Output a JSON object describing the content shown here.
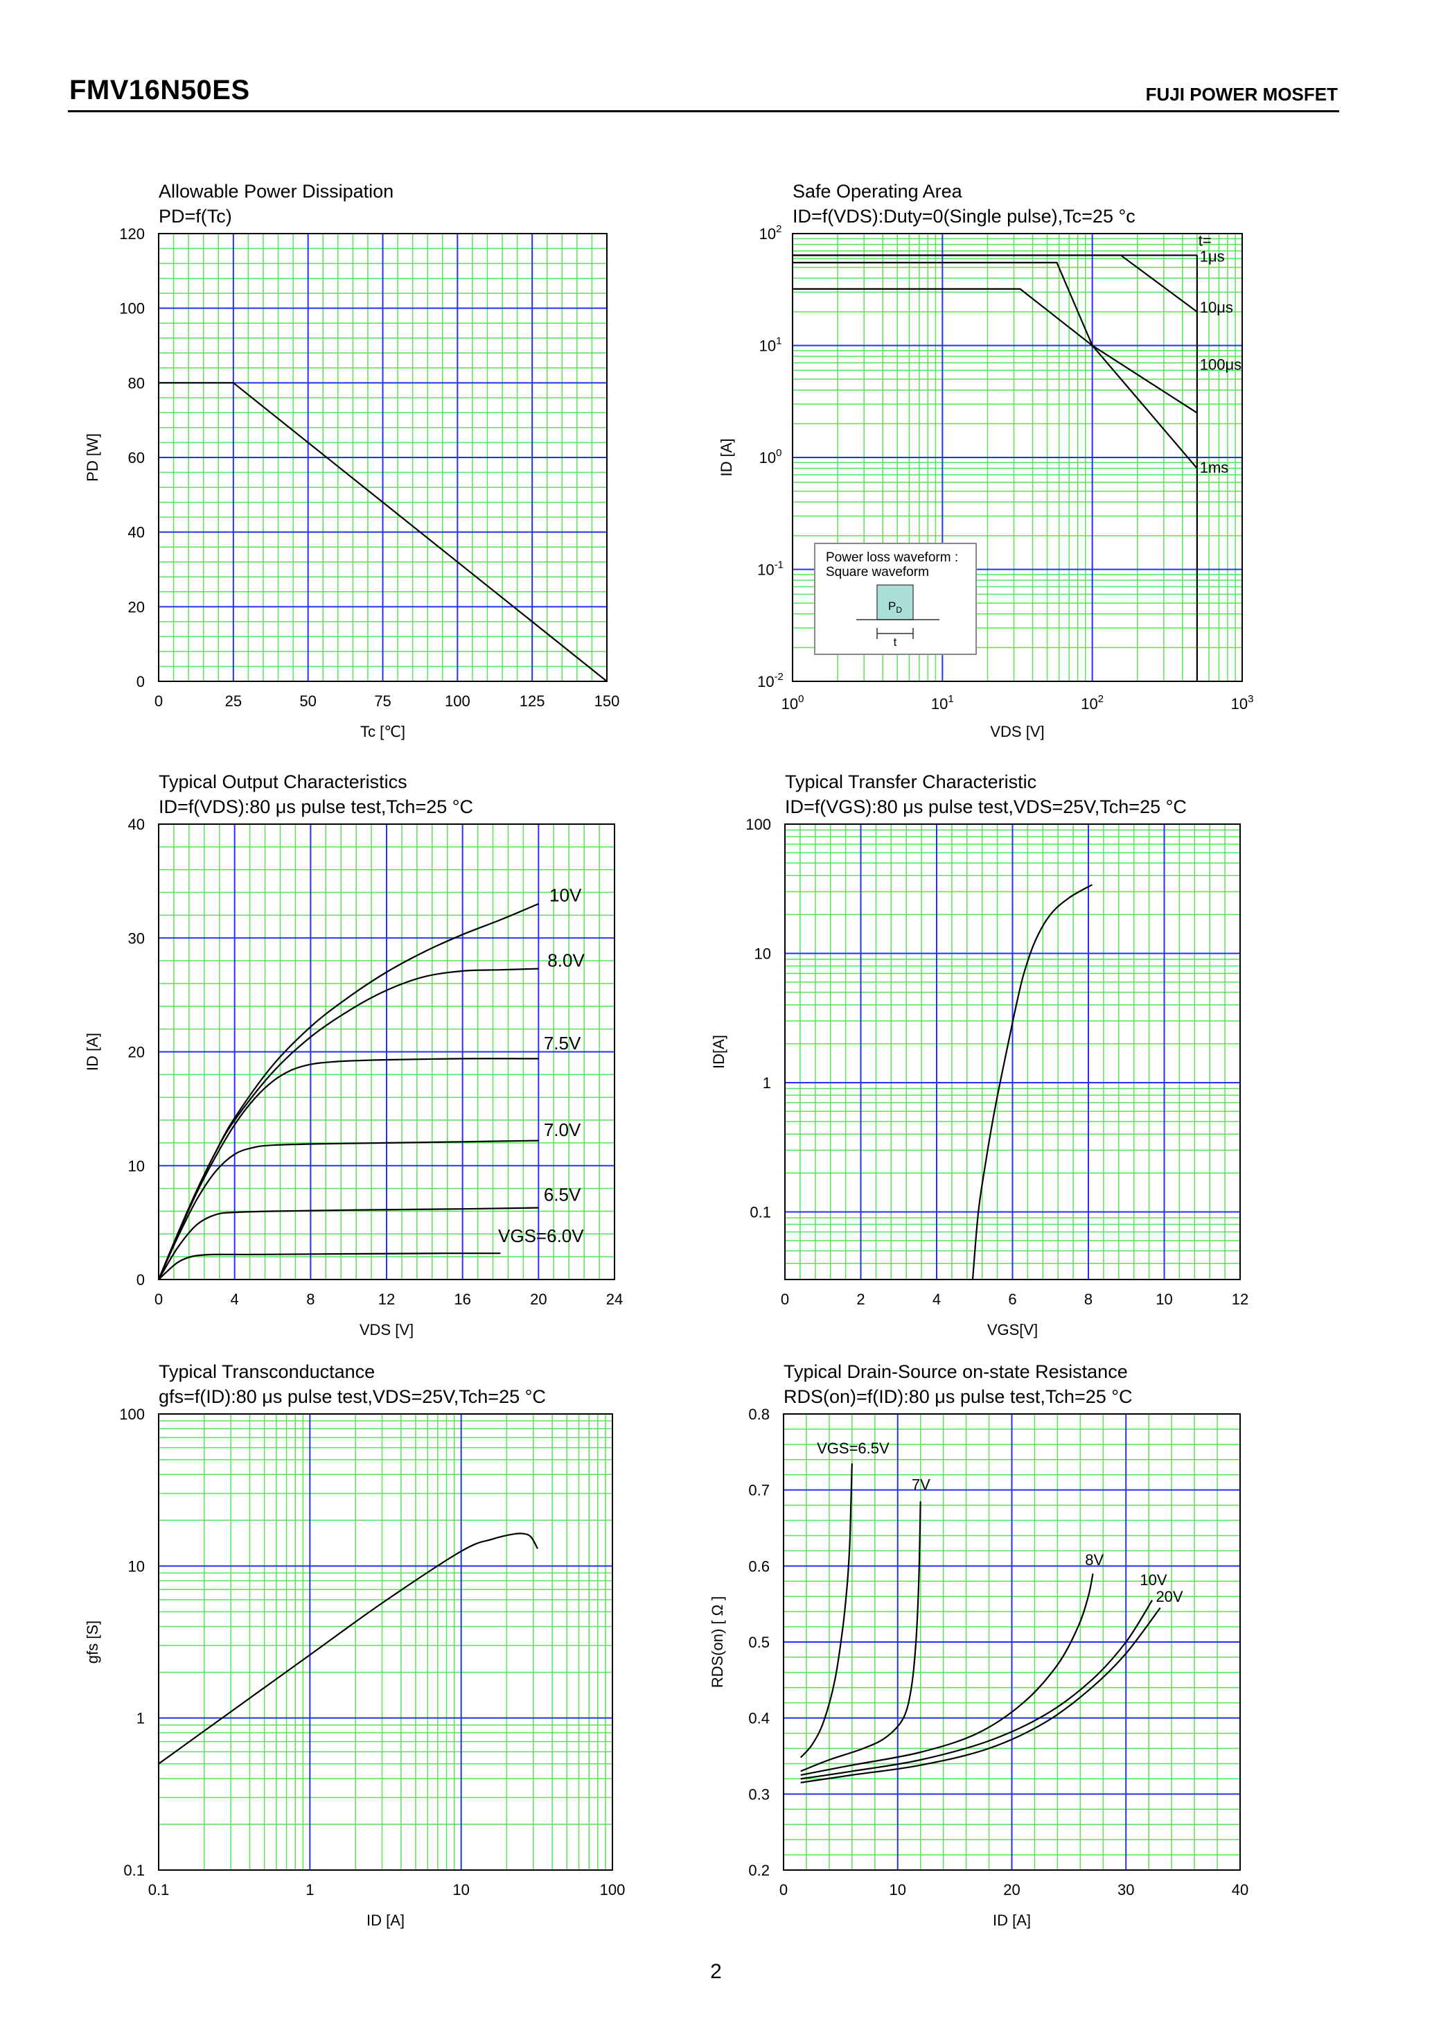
{
  "page": {
    "title": "FMV16N50ES",
    "brand": "FUJI POWER MOSFET",
    "page_number": "2"
  },
  "chart_data": [
    {
      "id": "pd",
      "type": "line",
      "title": "Allowable Power Dissipation",
      "subtitle": "PD=f(Tc)",
      "xlabel": "Tc [℃]",
      "ylabel": "PD [W]",
      "xlim": [
        0,
        150
      ],
      "ylim": [
        0,
        120
      ],
      "xscale": "linear",
      "yscale": "linear",
      "xticks": [
        0,
        25,
        50,
        75,
        100,
        125,
        150
      ],
      "yticks": [
        0,
        20,
        40,
        60,
        80,
        100,
        120
      ],
      "grid": true,
      "series": [
        {
          "x": [
            0,
            25,
            150
          ],
          "y": [
            80,
            80,
            0
          ]
        }
      ]
    },
    {
      "id": "soa",
      "type": "line",
      "title": "Safe Operating Area",
      "subtitle": "ID=f(VDS):Duty=0(Single pulse),Tc=25 °c",
      "xlabel": "VDS [V]",
      "ylabel": "ID [A]",
      "xlim": [
        1,
        1000
      ],
      "ylim": [
        0.01,
        100
      ],
      "xscale": "log",
      "yscale": "log",
      "xticks": [
        "10^0",
        "10^1",
        "10^2",
        "10^3"
      ],
      "yticks": [
        "10^-2",
        "10^-1",
        "10^0",
        "10^1",
        "10^2"
      ],
      "grid": true,
      "legend_title": "t=",
      "inset": {
        "title_line1": "Power loss waveform :",
        "title_line2": "Square waveform",
        "pulse_label": "PD",
        "width_label": "t"
      },
      "series": [
        {
          "name": "1μs",
          "x": [
            1,
            150,
            500
          ],
          "y": [
            64,
            64,
            64
          ]
        },
        {
          "name": "10μs",
          "x": [
            1,
            155,
            500
          ],
          "y": [
            64,
            64,
            20
          ]
        },
        {
          "name": "100μs",
          "x": [
            1,
            58,
            100,
            500
          ],
          "y": [
            55,
            55,
            10,
            2.5
          ]
        },
        {
          "name": "1ms",
          "x": [
            1,
            33,
            100,
            500
          ],
          "y": [
            32,
            32,
            10,
            0.8
          ]
        }
      ]
    },
    {
      "id": "output",
      "type": "line",
      "title": "Typical Output Characteristics",
      "subtitle": "ID=f(VDS):80 μs pulse test,Tch=25 °C",
      "xlabel": "VDS [V]",
      "ylabel": "ID [A]",
      "xlim": [
        0,
        24
      ],
      "ylim": [
        0,
        40
      ],
      "xscale": "linear",
      "yscale": "linear",
      "xticks": [
        0,
        4,
        8,
        12,
        16,
        20,
        24
      ],
      "yticks": [
        0,
        10,
        20,
        30,
        40
      ],
      "grid": true,
      "series": [
        {
          "name": "10V",
          "x": [
            0,
            1,
            2,
            3,
            4,
            6,
            8,
            10,
            12,
            14,
            16,
            18,
            20
          ],
          "y": [
            0,
            4,
            7.8,
            11.2,
            14.2,
            18.8,
            22.2,
            24.8,
            27,
            28.8,
            30.3,
            31.6,
            33
          ]
        },
        {
          "name": "8.0V",
          "x": [
            0,
            1,
            2,
            3,
            4,
            6,
            8,
            10,
            12,
            14,
            16,
            18,
            20
          ],
          "y": [
            0,
            4,
            7.8,
            11.2,
            14,
            18.2,
            21.3,
            23.6,
            25.4,
            26.6,
            27.1,
            27.2,
            27.3
          ]
        },
        {
          "name": "7.5V",
          "x": [
            0,
            1,
            2,
            3,
            4,
            5,
            6,
            7,
            8,
            9,
            10,
            12,
            16,
            20
          ],
          "y": [
            0,
            3.9,
            7.6,
            10.8,
            13.6,
            15.8,
            17.4,
            18.4,
            18.9,
            19.1,
            19.2,
            19.3,
            19.4,
            19.4
          ]
        },
        {
          "name": "7.0V",
          "x": [
            0,
            1,
            2,
            3,
            4,
            5,
            6,
            8,
            12,
            16,
            20
          ],
          "y": [
            0,
            3.7,
            7,
            9.5,
            11,
            11.6,
            11.8,
            11.9,
            12,
            12.1,
            12.2
          ]
        },
        {
          "name": "6.5V",
          "x": [
            0,
            1,
            2,
            3,
            4,
            6,
            10,
            16,
            20
          ],
          "y": [
            0,
            2.8,
            4.8,
            5.7,
            5.9,
            6,
            6.1,
            6.2,
            6.3
          ]
        },
        {
          "name": "VGS=6.0V",
          "x": [
            0,
            0.5,
            1,
            1.5,
            2,
            3,
            5,
            10,
            15,
            18
          ],
          "y": [
            0,
            0.8,
            1.5,
            1.9,
            2.1,
            2.2,
            2.2,
            2.25,
            2.3,
            2.3
          ]
        }
      ]
    },
    {
      "id": "transfer",
      "type": "line",
      "title": "Typical Transfer Characteristic",
      "subtitle": "ID=f(VGS):80 μs pulse test,VDS=25V,Tch=25 °C",
      "xlabel": "VGS[V]",
      "ylabel": "ID[A]",
      "xlim": [
        0,
        12
      ],
      "ylim": [
        0.03,
        100
      ],
      "xscale": "linear",
      "yscale": "log",
      "xticks": [
        0,
        2,
        4,
        6,
        8,
        10,
        12
      ],
      "yticks": [
        0.1,
        1,
        10,
        100
      ],
      "grid": true,
      "series": [
        {
          "x": [
            4.95,
            5.1,
            5.3,
            5.5,
            5.7,
            5.9,
            6.1,
            6.3,
            6.6,
            7,
            7.5,
            8.1
          ],
          "y": [
            0.03,
            0.1,
            0.25,
            0.55,
            1.1,
            2.1,
            4,
            7,
            12.5,
            20,
            27,
            34
          ]
        }
      ]
    },
    {
      "id": "gfs",
      "type": "line",
      "title": "Typical Transconductance",
      "subtitle": "gfs=f(ID):80 μs pulse test,VDS=25V,Tch=25 °C",
      "xlabel": "ID [A]",
      "ylabel": "gfs [S]",
      "xlim": [
        0.1,
        100
      ],
      "ylim": [
        0.1,
        100
      ],
      "xscale": "log",
      "yscale": "log",
      "xticks": [
        0.1,
        1,
        10,
        100
      ],
      "yticks": [
        0.1,
        1,
        10,
        100
      ],
      "grid": true,
      "series": [
        {
          "x": [
            0.1,
            0.3,
            1,
            3,
            10,
            16,
            22,
            26,
            29,
            32
          ],
          "y": [
            0.5,
            1.1,
            2.6,
            5.7,
            12.5,
            15,
            16.2,
            16.3,
            15.5,
            13
          ]
        }
      ]
    },
    {
      "id": "rds",
      "type": "line",
      "title": "Typical Drain-Source on-state Resistance",
      "subtitle": "RDS(on)=f(ID):80 μs pulse test,Tch=25 °C",
      "xlabel": "ID [A]",
      "ylabel": "RDS(on) [ Ω ]",
      "xlim": [
        0,
        40
      ],
      "ylim": [
        0.2,
        0.8
      ],
      "xscale": "linear",
      "yscale": "linear",
      "xticks": [
        0,
        10,
        20,
        30,
        40
      ],
      "yticks": [
        0.2,
        0.3,
        0.4,
        0.5,
        0.6,
        0.7,
        0.8
      ],
      "grid": true,
      "series": [
        {
          "name": "VGS=6.5V",
          "x": [
            1.5,
            2.5,
            3.5,
            4.5,
            5.2,
            5.6,
            5.8,
            5.9,
            6
          ],
          "y": [
            0.348,
            0.365,
            0.395,
            0.45,
            0.52,
            0.58,
            0.63,
            0.68,
            0.735
          ]
        },
        {
          "name": "7V",
          "x": [
            1.5,
            4,
            7,
            9,
            10.5,
            11.2,
            11.6,
            11.85,
            12
          ],
          "y": [
            0.33,
            0.345,
            0.36,
            0.375,
            0.4,
            0.44,
            0.5,
            0.58,
            0.685
          ]
        },
        {
          "name": "8V",
          "x": [
            1.5,
            6,
            12,
            17,
            21,
            24,
            25.8,
            26.7,
            27.1
          ],
          "y": [
            0.325,
            0.338,
            0.355,
            0.38,
            0.42,
            0.47,
            0.52,
            0.56,
            0.59
          ]
        },
        {
          "name": "10V",
          "x": [
            1.5,
            6,
            12,
            18,
            23,
            27,
            30,
            32.3
          ],
          "y": [
            0.32,
            0.33,
            0.345,
            0.37,
            0.405,
            0.45,
            0.5,
            0.555
          ]
        },
        {
          "name": "20V",
          "x": [
            1.5,
            6,
            12,
            18,
            23,
            27,
            30,
            33
          ],
          "y": [
            0.315,
            0.325,
            0.338,
            0.36,
            0.395,
            0.44,
            0.485,
            0.545
          ]
        }
      ]
    }
  ]
}
